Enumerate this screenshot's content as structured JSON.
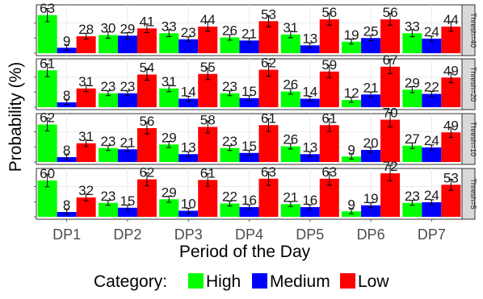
{
  "chart_data": {
    "type": "bar",
    "xlabel": "Period of the Day",
    "ylabel": "Probability (%)",
    "categories": [
      "DP1",
      "DP2",
      "DP3",
      "DP4",
      "DP5",
      "DP6",
      "DP7"
    ],
    "ylim": [
      0,
      72
    ],
    "legend": {
      "title": "Category:",
      "position": "bottom"
    },
    "grid": true,
    "series_meta": [
      {
        "name": "High",
        "color": "#00ff00"
      },
      {
        "name": "Medium",
        "color": "#0000ff"
      },
      {
        "name": "Low",
        "color": "#ff0000"
      }
    ],
    "panels": [
      {
        "label": "Thresh=40",
        "values": {
          "High": [
            63,
            30,
            33,
            26,
            31,
            19,
            33
          ],
          "Medium": [
            9,
            29,
            23,
            21,
            13,
            25,
            24
          ],
          "Low": [
            28,
            41,
            44,
            53,
            56,
            56,
            44
          ]
        }
      },
      {
        "label": "Thresh=20",
        "values": {
          "High": [
            61,
            23,
            31,
            23,
            26,
            12,
            29
          ],
          "Medium": [
            8,
            23,
            14,
            15,
            14,
            21,
            22
          ],
          "Low": [
            31,
            54,
            55,
            62,
            59,
            67,
            49
          ]
        }
      },
      {
        "label": "Thresh=10",
        "values": {
          "High": [
            62,
            23,
            29,
            23,
            26,
            9,
            27
          ],
          "Medium": [
            8,
            21,
            13,
            15,
            13,
            20,
            24
          ],
          "Low": [
            31,
            56,
            58,
            61,
            61,
            70,
            49
          ]
        }
      },
      {
        "label": "Thresh=5",
        "values": {
          "High": [
            60,
            23,
            29,
            22,
            21,
            9,
            23
          ],
          "Medium": [
            8,
            15,
            10,
            16,
            16,
            19,
            24
          ],
          "Low": [
            32,
            62,
            61,
            63,
            63,
            72,
            53
          ]
        }
      }
    ]
  }
}
